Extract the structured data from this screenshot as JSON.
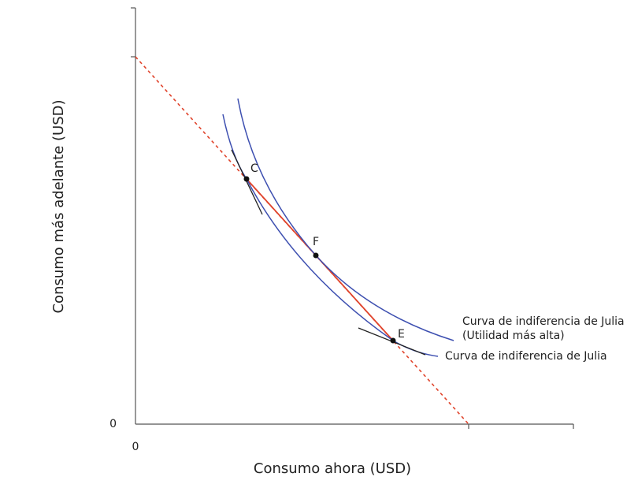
{
  "axes": {
    "x_label": "Consumo ahora (USD)",
    "y_label": "Consumo más adelante (USD)",
    "y_origin_label": "0",
    "x_origin_label": "0"
  },
  "points": [
    {
      "label": "C"
    },
    {
      "label": "F"
    },
    {
      "label": "E"
    }
  ],
  "curves": [
    {
      "lines": [
        "Curva de indiferencia de Julia",
        "(Utilidad más alta)"
      ]
    },
    {
      "lines": [
        "Curva de indiferencia de Julia"
      ]
    }
  ]
}
